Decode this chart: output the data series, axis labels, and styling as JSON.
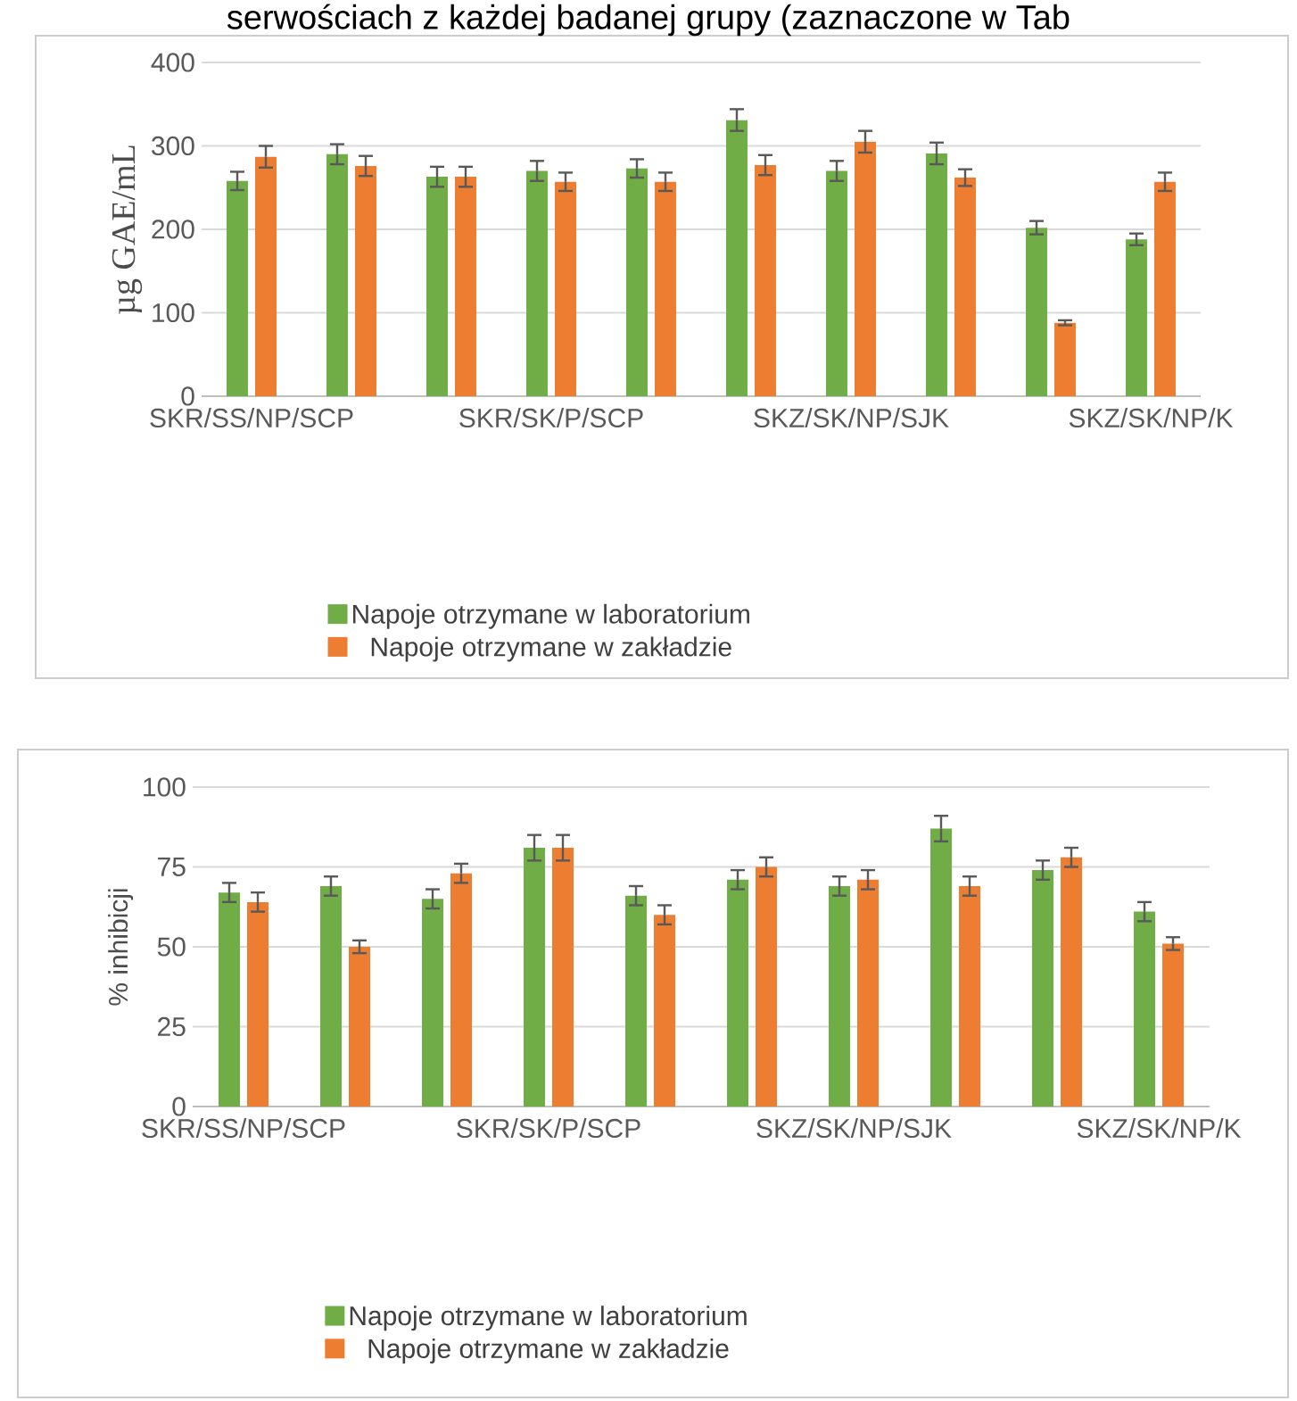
{
  "chart_data": [
    {
      "type": "bar",
      "ylabel": "µg GAE/mL",
      "annotations": [
        "serwościach z każdej badanej grupy (zaznaczone w Tab"
      ],
      "categories": [
        "SKR/SS/NP/SCP",
        null,
        null,
        "SKR/SK/P/SCP",
        null,
        null,
        "SKZ/SK/NP/SJK",
        null,
        null,
        "SKZ/SK/NP/K"
      ],
      "series": [
        {
          "name": "Napoje otrzymane w laboratorium",
          "color": "#70ad47",
          "values": [
            258,
            290,
            263,
            270,
            273,
            331,
            270,
            291,
            202,
            188
          ],
          "errors": [
            11,
            12,
            12,
            12,
            11,
            13,
            12,
            13,
            8,
            7
          ]
        },
        {
          "name": "Napoje otrzymane w zakładzie",
          "color": "#ed7d31",
          "values": [
            287,
            276,
            263,
            257,
            257,
            277,
            305,
            262,
            88,
            257
          ],
          "errors": [
            13,
            12,
            12,
            11,
            11,
            12,
            13,
            10,
            3,
            11
          ]
        }
      ],
      "ylim": [
        0,
        400
      ],
      "yticks": [
        0,
        100,
        200,
        300,
        400
      ],
      "grid": "y",
      "legend": "bottom"
    },
    {
      "type": "bar",
      "ylabel": "% inhibicji",
      "categories": [
        "SKR/SS/NP/SCP",
        null,
        null,
        "SKR/SK/P/SCP",
        null,
        null,
        "SKZ/SK/NP/SJK",
        null,
        null,
        "SKZ/SK/NP/K"
      ],
      "series": [
        {
          "name": "Napoje otrzymane w laboratorium",
          "color": "#70ad47",
          "values": [
            67,
            69,
            65,
            81,
            66,
            71,
            69,
            87,
            74,
            61
          ],
          "errors": [
            3,
            3,
            3,
            4,
            3,
            3,
            3,
            4,
            3,
            3
          ]
        },
        {
          "name": "Napoje otrzymane w zakładzie",
          "color": "#ed7d31",
          "values": [
            64,
            50,
            73,
            81,
            60,
            75,
            71,
            69,
            78,
            51
          ],
          "errors": [
            3,
            2,
            3,
            4,
            3,
            3,
            3,
            3,
            3,
            2
          ]
        }
      ],
      "ylim": [
        0,
        100
      ],
      "yticks": [
        0,
        25,
        50,
        75,
        100
      ],
      "grid": "y",
      "legend": "bottom"
    }
  ]
}
